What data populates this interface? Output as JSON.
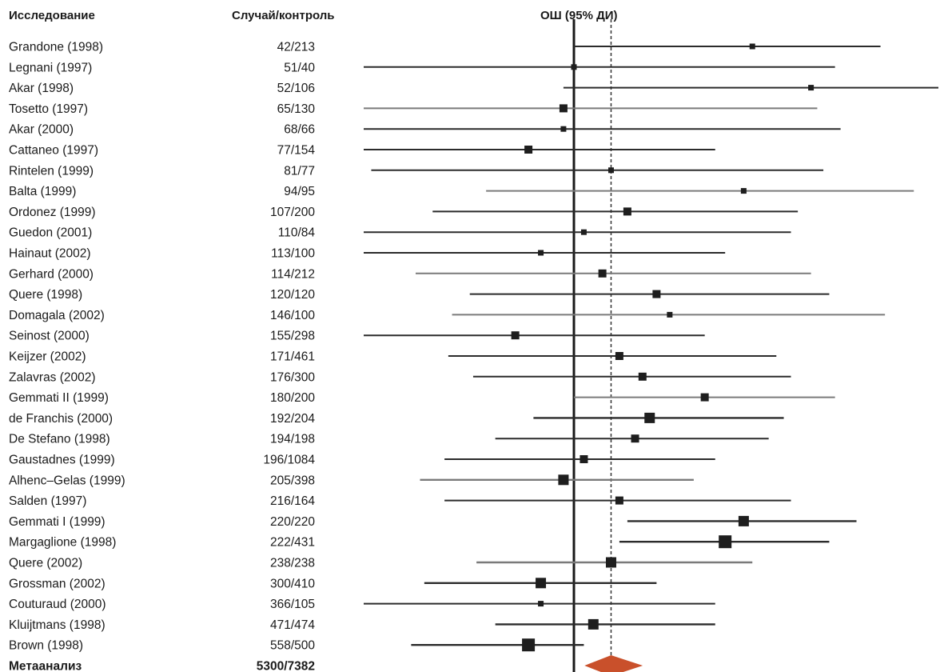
{
  "headers": {
    "study": "Исследование",
    "case_control": "Случай/контроль",
    "or_ci": "ОШ (95% ДИ)"
  },
  "colors": {
    "line_dark": "#2b2b2b",
    "line_gray": "#7a7a7a",
    "square": "#1e1e1e",
    "diamond": "#c9502b"
  },
  "chart_data": {
    "type": "forest",
    "title": "",
    "xlabel": "",
    "ylabel": "",
    "null_value": 1.0,
    "pooled_estimate": 1.2,
    "xlim": [
      0.2,
      6.3
    ],
    "x_scale": "log",
    "studies": [
      {
        "study": "Grandone (1998)",
        "case_control": "42/213",
        "or": 2.4,
        "lo": 1.0,
        "hi": 4.5,
        "weight": 1,
        "gray": false
      },
      {
        "study": "Legnani (1997)",
        "case_control": "51/40",
        "or": 1.0,
        "lo": 0.22,
        "hi": 3.6,
        "weight": 1,
        "gray": false
      },
      {
        "study": "Akar (1998)",
        "case_control": "52/106",
        "or": 3.2,
        "lo": 0.95,
        "hi": 6.3,
        "weight": 1,
        "gray": false
      },
      {
        "study": "Tosetto (1997)",
        "case_control": "65/130",
        "or": 0.95,
        "lo": 0.3,
        "hi": 3.3,
        "weight": 2,
        "gray": true
      },
      {
        "study": "Akar (2000)",
        "case_control": "68/66",
        "or": 0.95,
        "lo": 0.2,
        "hi": 3.7,
        "weight": 1,
        "gray": false
      },
      {
        "study": "Cattaneo (1997)",
        "case_control": "77/154",
        "or": 0.8,
        "lo": 0.35,
        "hi": 2.0,
        "weight": 2,
        "gray": false
      },
      {
        "study": "Rintelen (1999)",
        "case_control": "81/77",
        "or": 1.2,
        "lo": 0.37,
        "hi": 3.4,
        "weight": 1,
        "gray": false
      },
      {
        "study": "Balta (1999)",
        "case_control": "94/95",
        "or": 2.3,
        "lo": 0.65,
        "hi": 5.3,
        "weight": 1,
        "gray": true
      },
      {
        "study": "Ordonez (1999)",
        "case_control": "107/200",
        "or": 1.3,
        "lo": 0.5,
        "hi": 3.0,
        "weight": 2,
        "gray": false
      },
      {
        "study": "Guedon (2001)",
        "case_control": "110/84",
        "or": 1.05,
        "lo": 0.33,
        "hi": 2.9,
        "weight": 1,
        "gray": false
      },
      {
        "study": "Hainaut (2002)",
        "case_control": "113/100",
        "or": 0.85,
        "lo": 0.31,
        "hi": 2.1,
        "weight": 1,
        "gray": false
      },
      {
        "study": "Gerhard (2000)",
        "case_control": "114/212",
        "or": 1.15,
        "lo": 0.46,
        "hi": 3.2,
        "weight": 2,
        "gray": true
      },
      {
        "study": "Quere (1998)",
        "case_control": "120/120",
        "or": 1.5,
        "lo": 0.6,
        "hi": 3.5,
        "weight": 2,
        "gray": false
      },
      {
        "study": "Domagala (2002)",
        "case_control": "146/100",
        "or": 1.6,
        "lo": 0.55,
        "hi": 4.6,
        "weight": 1,
        "gray": true
      },
      {
        "study": "Seinost (2000)",
        "case_control": "155/298",
        "or": 0.75,
        "lo": 0.35,
        "hi": 1.9,
        "weight": 2,
        "gray": false
      },
      {
        "study": "Keijzer (2002)",
        "case_control": "171/461",
        "or": 1.25,
        "lo": 0.54,
        "hi": 2.7,
        "weight": 2,
        "gray": false
      },
      {
        "study": "Zalavras (2002)",
        "case_control": "176/300",
        "or": 1.4,
        "lo": 0.61,
        "hi": 2.9,
        "weight": 2,
        "gray": false
      },
      {
        "study": "Gemmati II (1999)",
        "case_control": "180/200",
        "or": 1.9,
        "lo": 1.0,
        "hi": 3.6,
        "weight": 2,
        "gray": true
      },
      {
        "study": "de Franchis (2000)",
        "case_control": "192/204",
        "or": 1.45,
        "lo": 0.82,
        "hi": 2.8,
        "weight": 3,
        "gray": false
      },
      {
        "study": "De Stefano (1998)",
        "case_control": "194/198",
        "or": 1.35,
        "lo": 0.68,
        "hi": 2.6,
        "weight": 2,
        "gray": false
      },
      {
        "study": "Gaustadnes (1999)",
        "case_control": "196/1084",
        "or": 1.05,
        "lo": 0.53,
        "hi": 2.0,
        "weight": 2,
        "gray": false
      },
      {
        "study": "Alhenc–Gelas (1999)",
        "case_control": "205/398",
        "or": 0.95,
        "lo": 0.47,
        "hi": 1.8,
        "weight": 3,
        "gray": true
      },
      {
        "study": "Salden (1997)",
        "case_control": "216/164",
        "or": 1.25,
        "lo": 0.53,
        "hi": 2.9,
        "weight": 2,
        "gray": false
      },
      {
        "study": "Gemmati I (1999)",
        "case_control": "220/220",
        "or": 2.3,
        "lo": 1.3,
        "hi": 4.0,
        "weight": 3,
        "gray": false
      },
      {
        "study": "Margaglione (1998)",
        "case_control": "222/431",
        "or": 2.1,
        "lo": 1.25,
        "hi": 3.5,
        "weight": 4,
        "gray": false
      },
      {
        "study": "Quere (2002)",
        "case_control": "238/238",
        "or": 1.2,
        "lo": 0.62,
        "hi": 2.4,
        "weight": 3,
        "gray": true
      },
      {
        "study": "Grossman (2002)",
        "case_control": "300/410",
        "or": 0.85,
        "lo": 0.48,
        "hi": 1.5,
        "weight": 3,
        "gray": false
      },
      {
        "study": "Couturaud (2000)",
        "case_control": "366/105",
        "or": 0.85,
        "lo": 0.31,
        "hi": 2.0,
        "weight": 1,
        "gray": false
      },
      {
        "study": "Kluijtmans (1998)",
        "case_control": "471/474",
        "or": 1.1,
        "lo": 0.68,
        "hi": 2.0,
        "weight": 3,
        "gray": false
      },
      {
        "study": "Brown (1998)",
        "case_control": "558/500",
        "or": 0.8,
        "lo": 0.45,
        "hi": 1.05,
        "weight": 4,
        "gray": false
      }
    ],
    "meta": {
      "study": "Метаанализ",
      "case_control": "5300/7382",
      "or": 1.2,
      "lo": 1.07,
      "hi": 1.38
    }
  }
}
